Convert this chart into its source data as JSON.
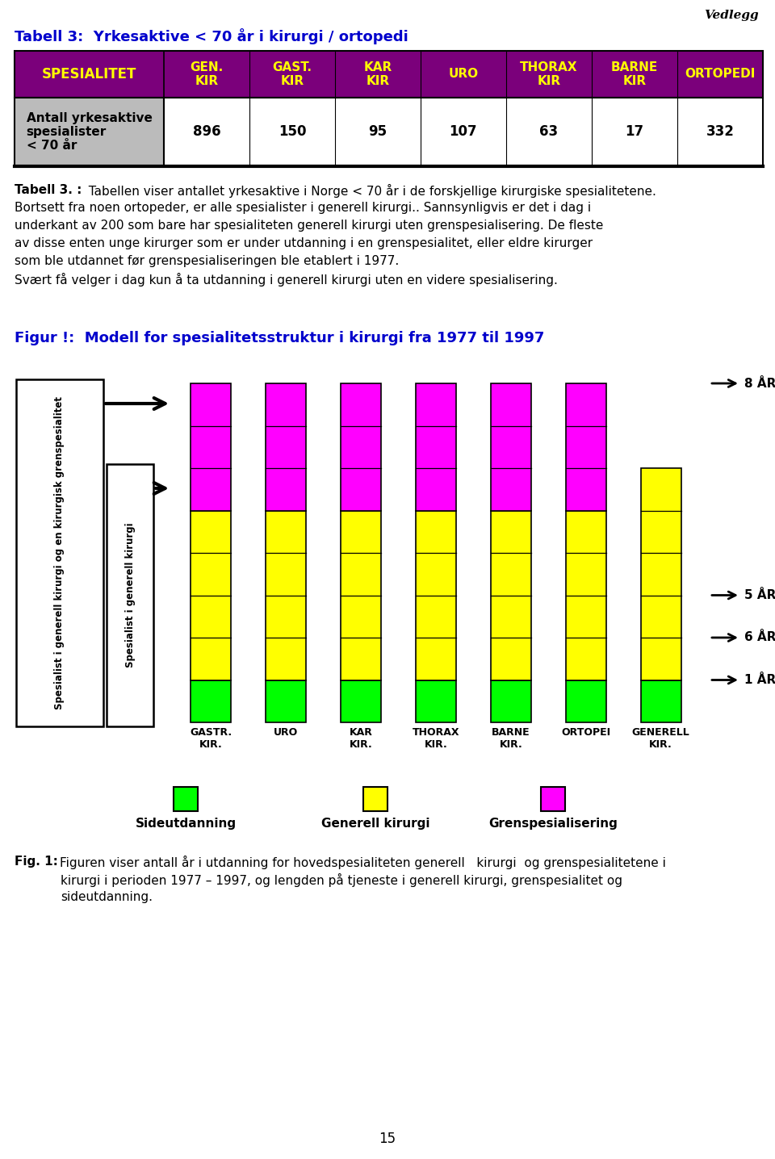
{
  "page_number": "15",
  "vedlegg_text": "Vedlegg",
  "title_tabell3": "Tabell 3:  Yrkesaktive < 70 år i kirurgi / ortopedi",
  "table_header_bg": "#7B007B",
  "table_header_text_color": "#FFFF00",
  "table_header_col1": "SPESIALITET",
  "table_header_cols": [
    "GEN.\nKIR",
    "GAST.\nKIR",
    "KAR\nKIR",
    "URO",
    "THORAX\nKIR",
    "BARNE\nKIR",
    "ORTOPEDI"
  ],
  "table_row_label_bg": "#BBBBBB",
  "table_row_label": "Antall yrkesaktive\nspesialister\n< 70 år",
  "table_row_values": [
    "896",
    "150",
    "95",
    "107",
    "63",
    "17",
    "332"
  ],
  "color_green": "#00FF00",
  "color_yellow": "#FFFF00",
  "color_magenta": "#FF00FF",
  "bar_labels": [
    "GASTR.\nKIR.",
    "URO",
    "KAR\nKIR.",
    "THORAX\nKIR.",
    "BARNE\nKIR.",
    "ORTOPEI",
    "GENERELL\nKIR."
  ],
  "legend_items": [
    "Sideutdanning",
    "Generell kirurgi",
    "Grenspesialisering"
  ],
  "legend_colors": [
    "#00FF00",
    "#FFFF00",
    "#FF00FF"
  ],
  "year_labels": [
    "8 ÅR",
    "6 ÅR",
    "5 ÅR",
    "1 ÅR"
  ],
  "title_color": "#0000CC",
  "figur_title": "Figur !:  Modell for spesialitetsstruktur i kirurgi fra 1977 til 1997",
  "caption_lines": [
    "Tabell 3. :  Tabellen viser antallet yrkesaktive i Norge < 70 år i de forskjellige kirurgiske spesialitetene.",
    "Bortsett fra noen ortopeder, er alle spesialister i generell kirurgi.. Sannsynligvis er det i dag i",
    "underkant av 200 som bare har spesialiteten generell kirurgi uten grenspesialisering. De fleste",
    "av disse enten unge kirurger som er under utdanning i en grenspesialitet, eller eldre kirurger",
    "som ble utdannet før grenspesialiseringen ble etablert i 1977.",
    "Svært få velger i dag kun å ta utdanning i generell kirurgi uten en videre spesialisering."
  ],
  "fig1_line1": "Figuren viser antall år i utdanning for hovedspesialiteten generell   kirurgi  og grenspesialitetene i",
  "fig1_line2": "kirurgi i perioden 1977 – 1997, og lengden på tjeneste i generell kirurgi, grenspesialitet og",
  "fig1_line3": "sideutdanning.",
  "box1_text": "Spesialist i generell kirurgi og en kirurgisk\ngrenspesialitet",
  "box2_text": "Spesialist i generell kirurgi"
}
